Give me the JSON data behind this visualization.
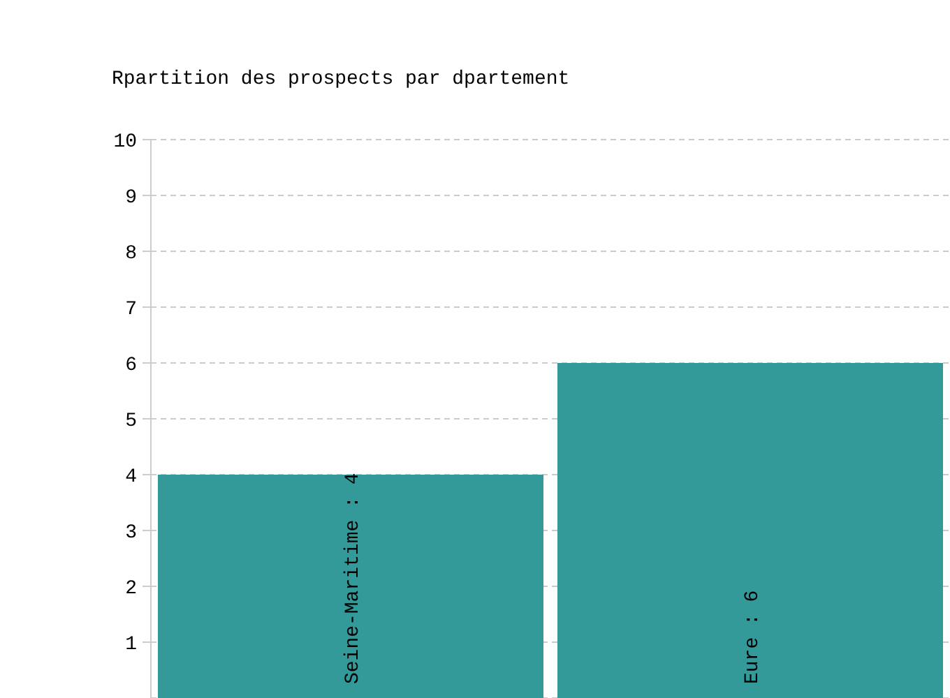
{
  "chart_data": {
    "type": "bar",
    "title": "Rpartition des prospects par dpartement",
    "categories": [
      null,
      null
    ],
    "values": [
      4,
      6
    ],
    "color": "#339999",
    "value_labels": [
      "Seine-Maritime : 4",
      "Eure : 6"
    ],
    "ylim": [
      0,
      10
    ],
    "yticks": [
      1,
      2,
      3,
      4,
      5,
      6,
      7,
      8,
      9,
      10
    ],
    "grid": "y",
    "tick_labels": "y"
  }
}
